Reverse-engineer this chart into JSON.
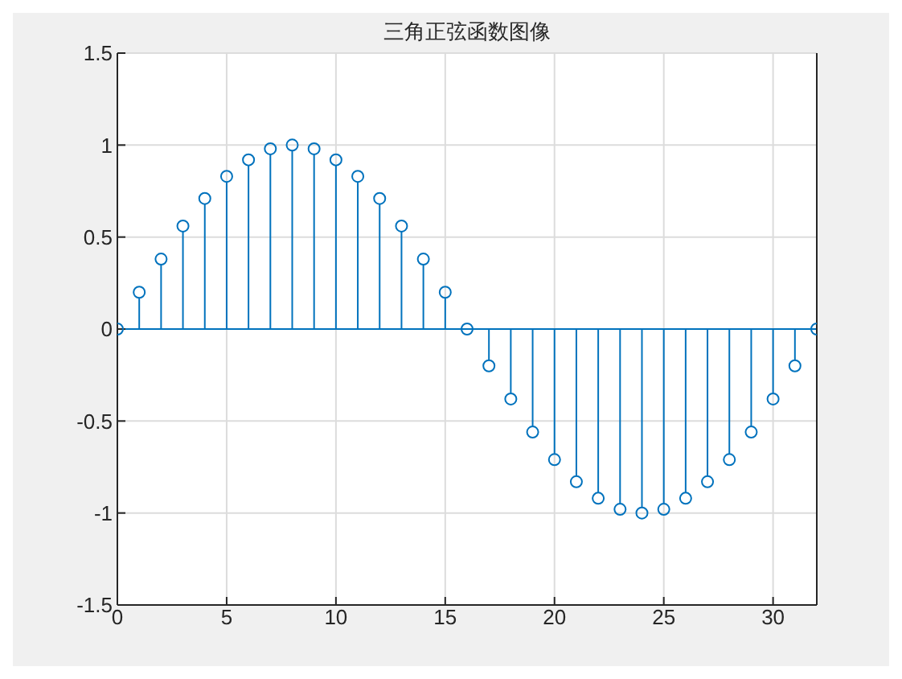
{
  "chart_data": {
    "type": "lollipop",
    "title": "三角正弦函数图像",
    "x": [
      0,
      1,
      2,
      3,
      4,
      5,
      6,
      7,
      8,
      9,
      10,
      11,
      12,
      13,
      14,
      15,
      16,
      17,
      18,
      19,
      20,
      21,
      22,
      23,
      24,
      25,
      26,
      27,
      28,
      29,
      30,
      31,
      32
    ],
    "values": [
      0,
      0.2,
      0.38,
      0.56,
      0.71,
      0.83,
      0.92,
      0.98,
      1,
      0.98,
      0.92,
      0.83,
      0.71,
      0.56,
      0.38,
      0.2,
      0,
      -0.2,
      -0.38,
      -0.56,
      -0.71,
      -0.83,
      -0.92,
      -0.98,
      -1,
      -0.98,
      -0.92,
      -0.83,
      -0.71,
      -0.56,
      -0.38,
      -0.2,
      0
    ],
    "color": "#0072bd",
    "marker": "circle",
    "grid": true,
    "ref_lines": [
      {
        "axis": "y",
        "value": 0,
        "color": "#0072bd"
      }
    ],
    "xlim": [
      0,
      32
    ],
    "xticks": [
      0,
      5,
      10,
      15,
      20,
      25,
      30
    ],
    "ylim": [
      -1.5,
      1.5
    ],
    "yticks": [
      -1.5,
      -1,
      -0.5,
      0,
      0.5,
      1,
      1.5
    ]
  }
}
